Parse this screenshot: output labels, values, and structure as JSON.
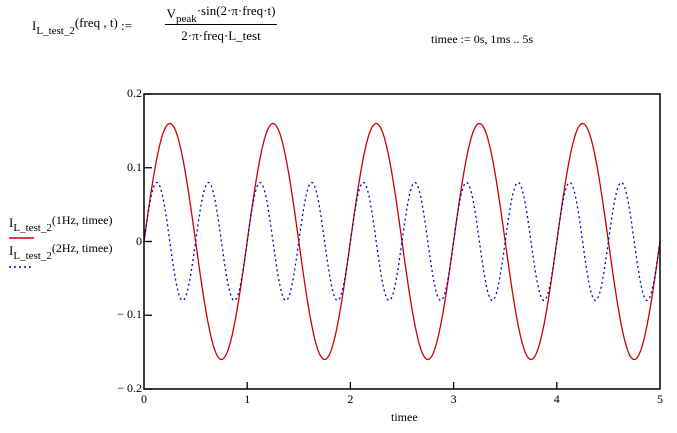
{
  "definition": {
    "func_name": "I",
    "func_sub": "L_test_2",
    "func_args": "(freq , t)",
    "assign": ":=",
    "numerator_main": "V",
    "numerator_sub": "peak",
    "numerator_rest": "·sin(2·π·freq·t)",
    "denominator": "2·π·freq·L_test"
  },
  "range_def": "timee := 0s, 1ms .. 5s",
  "legend": [
    {
      "main": "I",
      "sub": "L_test_2",
      "args": "(1Hz, timee)",
      "color": "#cc0000",
      "style": "solid"
    },
    {
      "main": "I",
      "sub": "L_test_2",
      "args": "(2Hz, timee)",
      "color": "#0000cc",
      "style": "dotted"
    }
  ],
  "chart_data": {
    "type": "line",
    "title": "",
    "xlabel": "timee",
    "ylabel": "",
    "xlim": [
      0,
      5
    ],
    "ylim": [
      -0.2,
      0.2
    ],
    "x_ticks": [
      "0",
      "1",
      "2",
      "3",
      "4",
      "5"
    ],
    "y_ticks": [
      "0.2",
      "0.1",
      "0",
      "− 0.1",
      "− 0.2"
    ],
    "grid": false,
    "series": [
      {
        "name": "I_L_test_2(1Hz, timee)",
        "amplitude": 0.16,
        "frequency_hz": 1,
        "color": "#cc0000",
        "style": "solid"
      },
      {
        "name": "I_L_test_2(2Hz, timee)",
        "amplitude": 0.08,
        "frequency_hz": 2,
        "color": "#0000cc",
        "style": "dotted"
      }
    ]
  }
}
